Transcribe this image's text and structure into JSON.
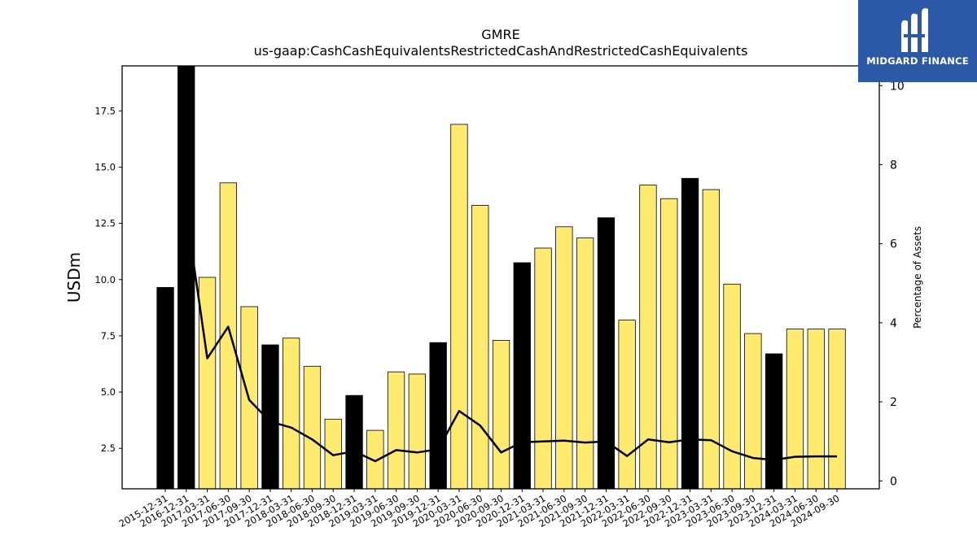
{
  "brand": {
    "name": "MIDGARD FINANCE",
    "background": "#2b59a8"
  },
  "chart_data": {
    "type": "bar",
    "title": "GMRE",
    "subtitle": "us-gaap:CashCashEquivalentsRestrictedCashAndRestrictedCashEquivalents",
    "ylabel": "USDm",
    "y2label": "Percentage of Assets",
    "ylim": [
      0.7,
      19.5
    ],
    "y2lim": [
      -0.2,
      10.5
    ],
    "yticks": [
      2.5,
      5.0,
      7.5,
      10.0,
      12.5,
      15.0,
      17.5
    ],
    "y2ticks": [
      0,
      2,
      4,
      6,
      8,
      10
    ],
    "grid": false,
    "categories": [
      "2015-12-31",
      "2016-12-31",
      "2017-03-31",
      "2017-06-30",
      "2017-09-30",
      "2017-12-31",
      "2018-03-31",
      "2018-06-30",
      "2018-09-30",
      "2018-12-31",
      "2019-03-31",
      "2019-06-30",
      "2019-09-30",
      "2019-12-31",
      "2020-03-31",
      "2020-06-30",
      "2020-09-30",
      "2020-12-31",
      "2021-03-31",
      "2021-06-30",
      "2021-09-30",
      "2021-12-31",
      "2022-03-31",
      "2022-06-30",
      "2022-09-30",
      "2022-12-31",
      "2023-03-31",
      "2023-06-30",
      "2023-09-30",
      "2023-12-31",
      "2024-03-31",
      "2024-06-30",
      "2024-09-30"
    ],
    "series": [
      {
        "values": [
          9.65,
          19.5,
          10.1,
          14.3,
          8.8,
          7.1,
          7.4,
          6.15,
          3.8,
          4.85,
          3.3,
          5.9,
          5.8,
          7.2,
          16.9,
          13.3,
          7.3,
          10.75,
          11.4,
          12.35,
          11.85,
          12.75,
          8.2,
          14.2,
          13.6,
          14.5,
          14.0,
          9.8,
          7.6,
          6.7,
          7.8,
          7.8,
          7.8
        ],
        "annual": [
          true,
          true,
          false,
          false,
          false,
          true,
          false,
          false,
          false,
          true,
          false,
          false,
          false,
          true,
          false,
          false,
          false,
          true,
          false,
          false,
          false,
          true,
          false,
          false,
          false,
          true,
          false,
          false,
          false,
          true,
          false,
          false,
          false
        ]
      },
      {
        "axis": "right",
        "values": [
          null,
          6.8,
          3.1,
          3.9,
          2.05,
          1.5,
          1.35,
          1.05,
          0.65,
          0.75,
          0.5,
          0.78,
          0.72,
          0.8,
          1.77,
          1.4,
          0.72,
          0.98,
          1.0,
          1.02,
          0.97,
          1.0,
          0.63,
          1.05,
          0.98,
          1.05,
          1.03,
          0.75,
          0.58,
          0.53,
          0.61,
          0.62,
          0.62
        ]
      }
    ],
    "colors": {
      "annual_bar": "#000000",
      "quarter_bar": "#ffea70",
      "bar_edge": "#000000",
      "line": "#000000"
    }
  }
}
